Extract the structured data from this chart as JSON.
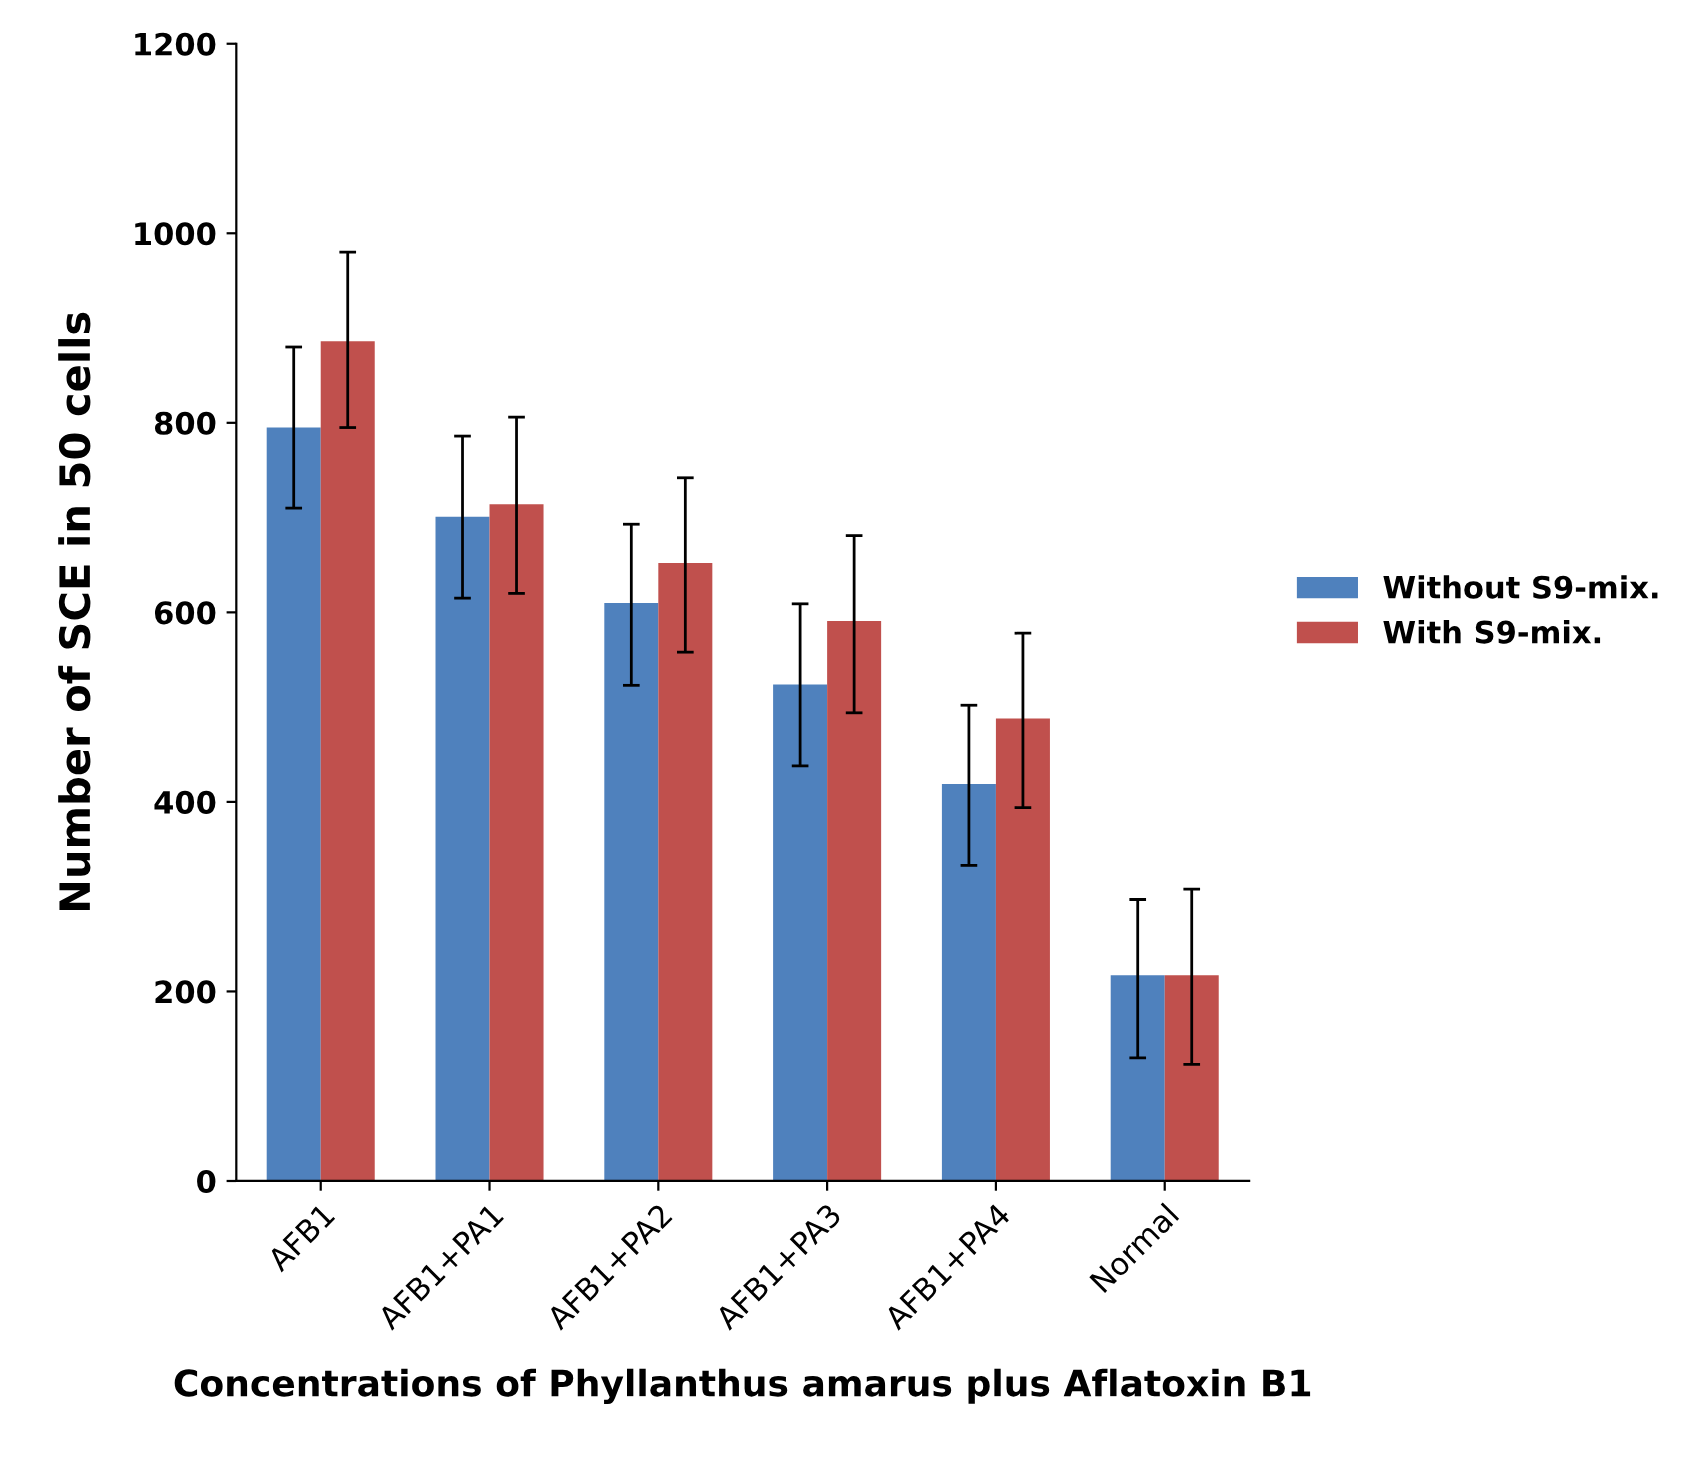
{
  "chart_data": {
    "type": "bar",
    "xlabel": "Concentrations of Phyllanthus amarus plus Aflatoxin B1",
    "ylabel": "Number of SCE in 50 cells",
    "categories": [
      "AFB1",
      "AFB1+PA1",
      "AFB1+PA2",
      "AFB1+PA3",
      "AFB1+PA4",
      "Normal"
    ],
    "series": [
      {
        "name": "Without S9-mix.",
        "color": "#4f81bd",
        "values": [
          795,
          701,
          610,
          524,
          419,
          217
        ],
        "errors": [
          [
            710,
            880
          ],
          [
            615,
            786
          ],
          [
            523,
            693
          ],
          [
            438,
            609
          ],
          [
            333,
            502
          ],
          [
            130,
            297
          ]
        ]
      },
      {
        "name": "With S9-mix.",
        "color": "#c0504d",
        "values": [
          886,
          714,
          652,
          591,
          488,
          217
        ],
        "errors": [
          [
            795,
            980
          ],
          [
            620,
            806
          ],
          [
            558,
            742
          ],
          [
            494,
            681
          ],
          [
            394,
            578
          ],
          [
            123,
            308
          ]
        ]
      }
    ],
    "ylim": [
      0,
      1200
    ],
    "yticks": [
      0,
      200,
      400,
      600,
      800,
      1000,
      1200
    ],
    "grid": false,
    "legend": "right"
  }
}
